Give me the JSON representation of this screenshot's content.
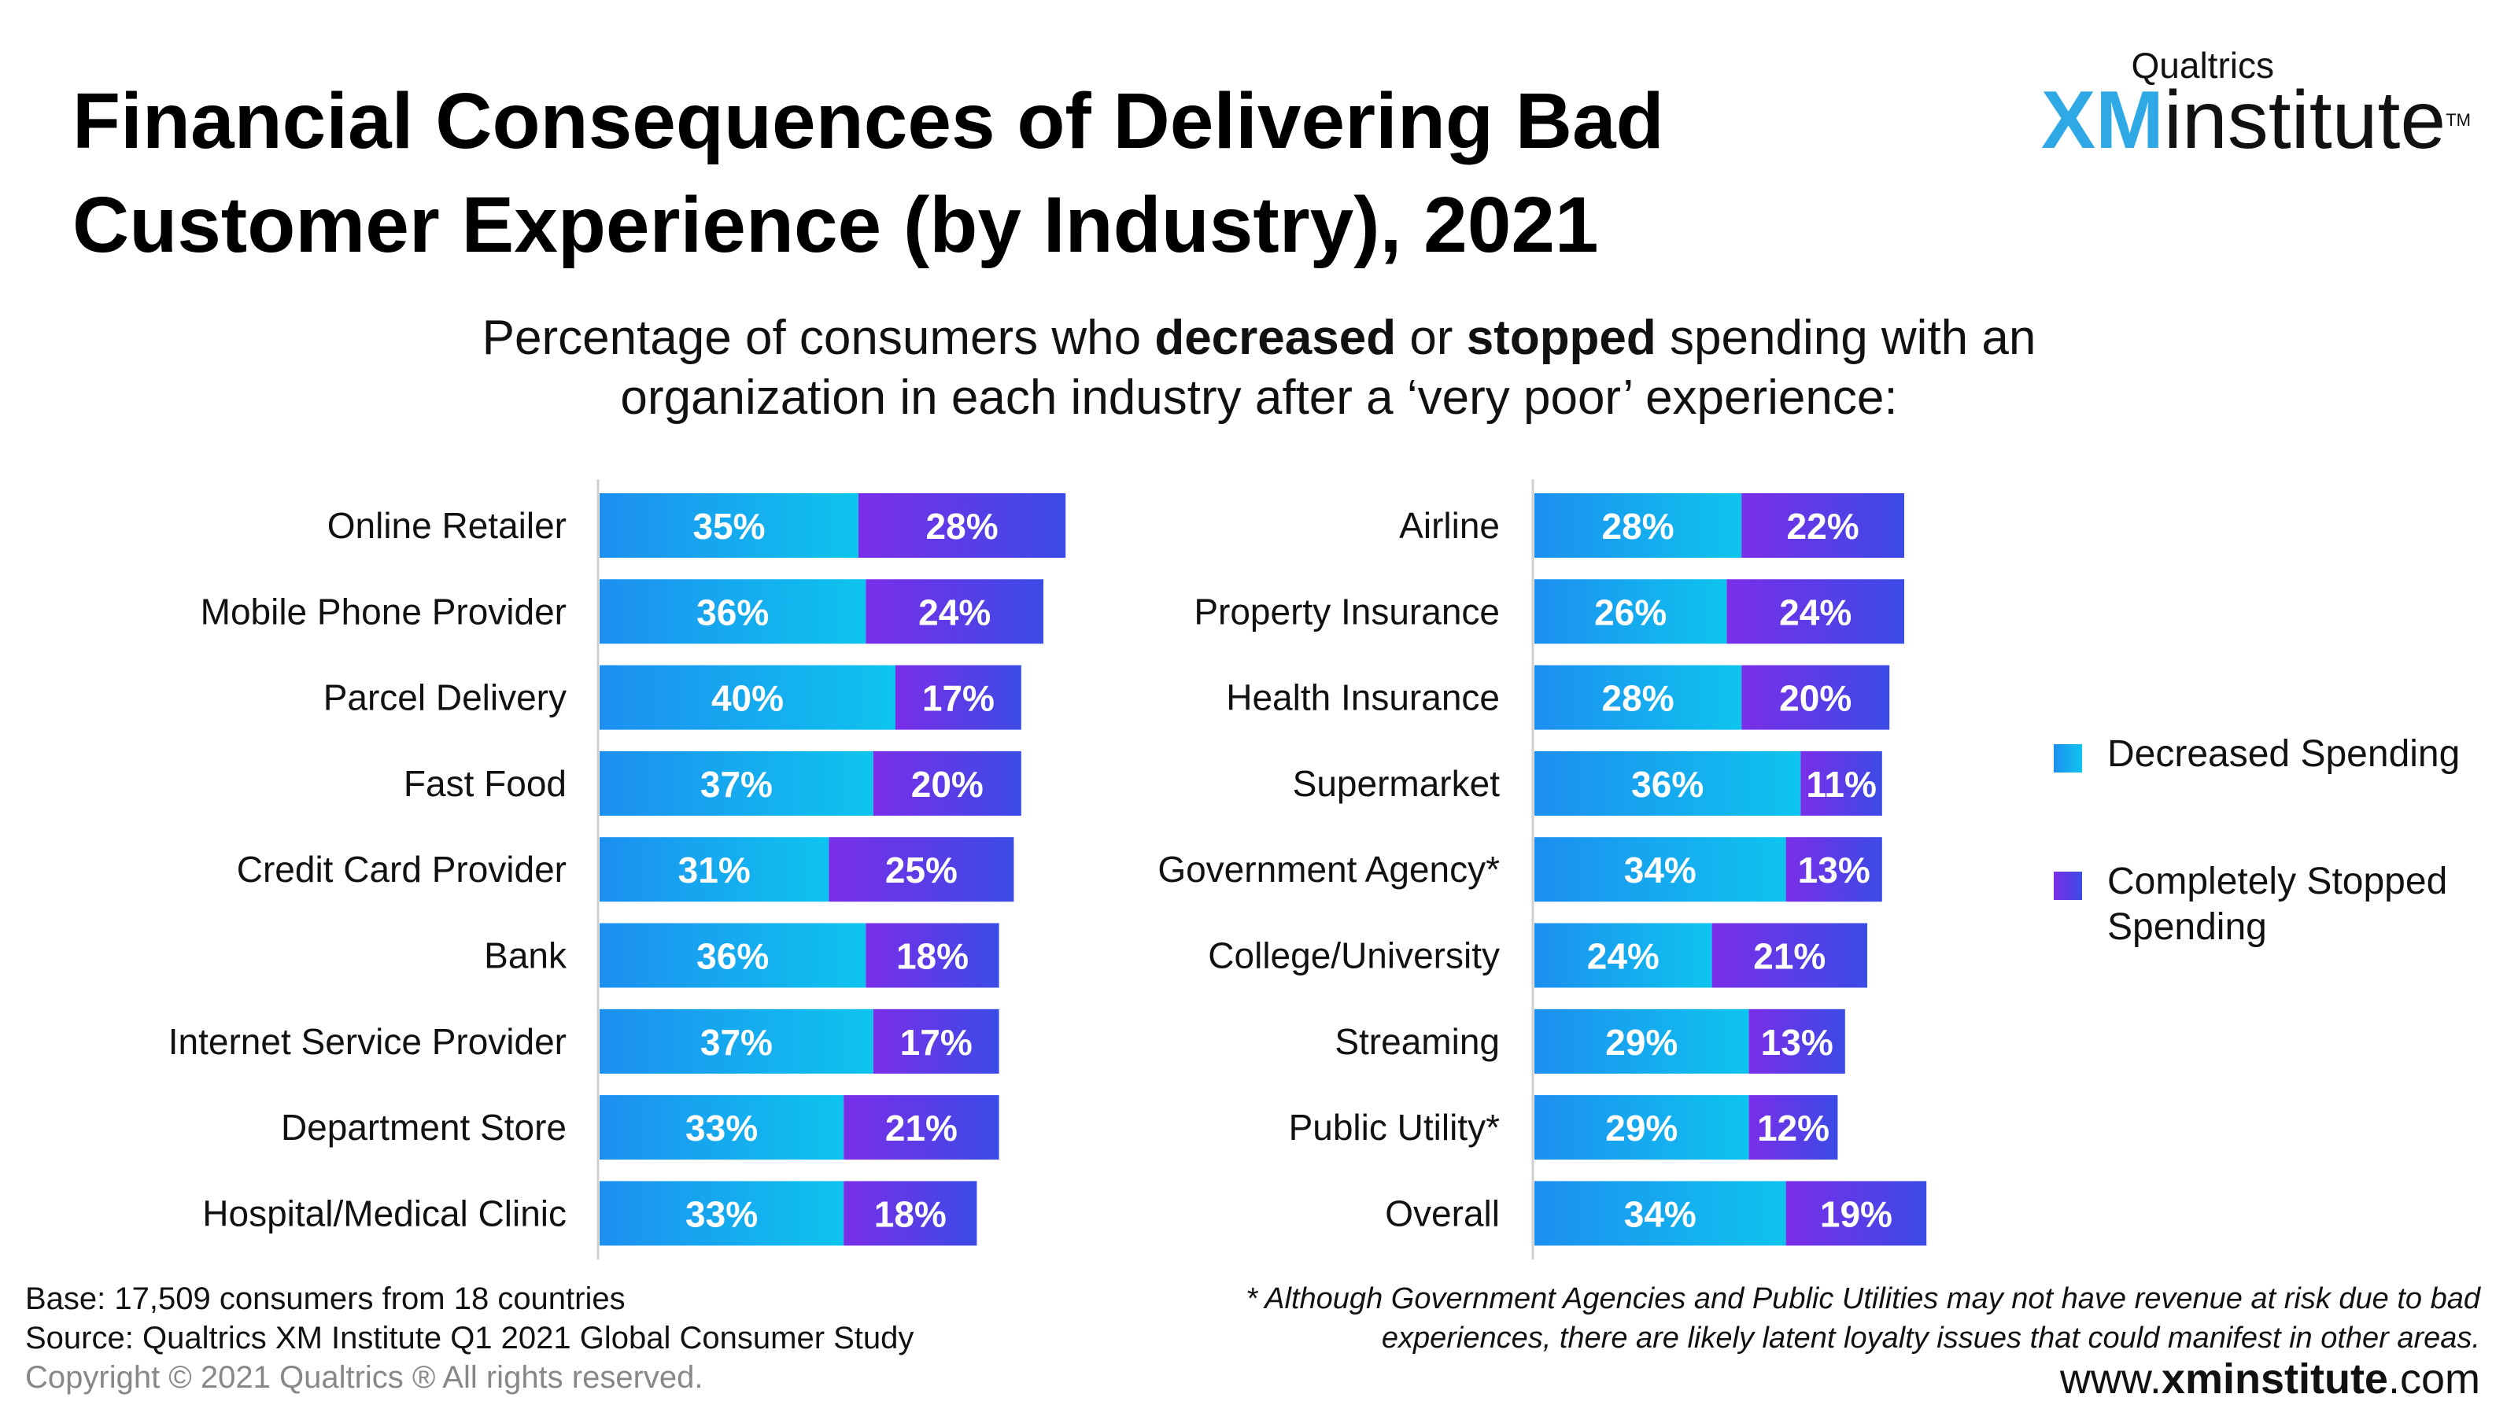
{
  "title": "Financial Consequences of Delivering Bad Customer Experience (by Industry), 2021",
  "logo": {
    "small": "Qualtrics",
    "xm": "XM",
    "institute": "institute",
    "tm": "TM"
  },
  "subtitle": {
    "p1": "Percentage of consumers who ",
    "b1": "decreased",
    "p2": " or ",
    "b2": "stopped",
    "p3": " spending with an organization in each industry after a ‘very poor’ experience:"
  },
  "colors": {
    "decreased_start": "#1d8ff0",
    "decreased_end": "#0ec4ee",
    "stopped_start": "#7a2ee8",
    "stopped_end": "#3b4be6",
    "axis": "#d0d0d0"
  },
  "chart_data": [
    {
      "type": "bar",
      "orientation": "horizontal",
      "stacked": true,
      "categories": [
        "Online Retailer",
        "Mobile Phone Provider",
        "Parcel Delivery",
        "Fast Food",
        "Credit Card Provider",
        "Bank",
        "Internet Service Provider",
        "Department Store",
        "Hospital/Medical Clinic"
      ],
      "series": [
        {
          "name": "Decreased Spending",
          "values": [
            35,
            36,
            40,
            37,
            31,
            36,
            37,
            33,
            33
          ]
        },
        {
          "name": "Completely Stopped Spending",
          "values": [
            28,
            24,
            17,
            20,
            25,
            18,
            17,
            21,
            18
          ]
        }
      ],
      "value_suffix": "%"
    },
    {
      "type": "bar",
      "orientation": "horizontal",
      "stacked": true,
      "categories": [
        "Airline",
        "Property Insurance",
        "Health Insurance",
        "Supermarket",
        "Government Agency*",
        "College/University",
        "Streaming",
        "Public Utility*",
        "Overall"
      ],
      "series": [
        {
          "name": "Decreased Spending",
          "values": [
            28,
            26,
            28,
            36,
            34,
            24,
            29,
            29,
            34
          ]
        },
        {
          "name": "Completely Stopped Spending",
          "values": [
            22,
            24,
            20,
            11,
            13,
            21,
            13,
            12,
            19
          ]
        }
      ],
      "value_suffix": "%"
    }
  ],
  "legend": {
    "decreased": "Decreased Spending",
    "stopped": "Completely Stopped Spending"
  },
  "footer": {
    "base": "Base: 17,509 consumers from 18 countries",
    "source": "Source: Qualtrics XM Institute Q1 2021 Global Consumer Study",
    "copyright": "Copyright © 2021 Qualtrics ® All rights reserved."
  },
  "footnote": "* Although Government Agencies and Public Utilities may not have revenue at risk due to bad experiences, there are likely latent loyalty issues that could manifest in other areas.",
  "website": {
    "prefix": "www.",
    "bold": "xminstitute",
    "suffix": ".com"
  }
}
